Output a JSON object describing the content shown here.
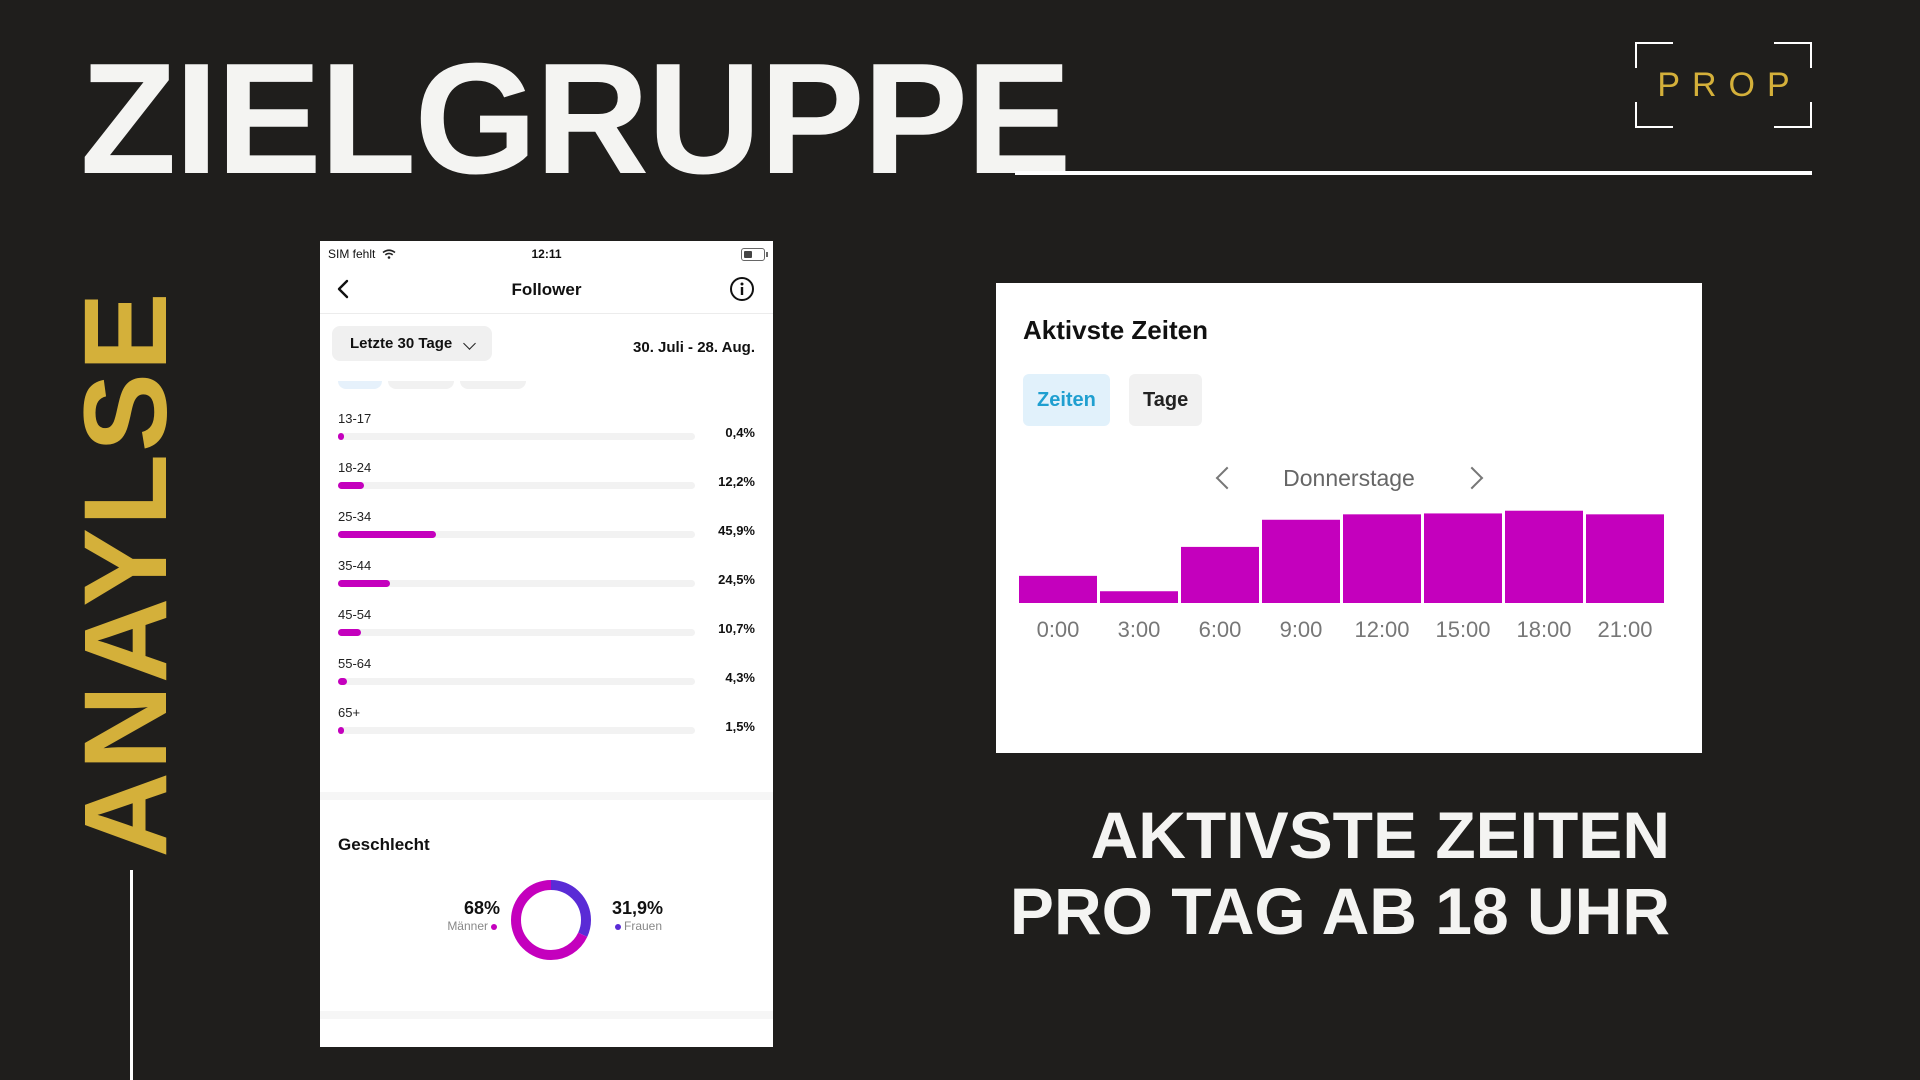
{
  "page": {
    "title": "ZIELGRUPPE",
    "side_word": "ANAYLSE",
    "logo_text": "PROP",
    "caption_line1": "AKTIVSTE ZEITEN",
    "caption_line2": "PRO TAG AB 18 UHR"
  },
  "colors": {
    "background": "#1f1e1c",
    "gold": "#d4b03a",
    "magenta": "#c400bd",
    "violet": "#5a2bd6",
    "accent_blue": "#1f9fd0"
  },
  "phone": {
    "status": {
      "carrier": "SIM fehlt",
      "time": "12:11"
    },
    "nav": {
      "title": "Follower",
      "back_icon": "chevron-left-icon",
      "info_icon": "info-icon"
    },
    "range": {
      "label": "Letzte 30 Tage",
      "dates": "30. Juli - 28. Aug."
    },
    "age_groups": [
      {
        "label": "13-17",
        "value": "0,4%",
        "fraction": 0.004
      },
      {
        "label": "18-24",
        "value": "12,2%",
        "fraction": 0.122
      },
      {
        "label": "25-34",
        "value": "45,9%",
        "fraction": 0.459
      },
      {
        "label": "35-44",
        "value": "24,5%",
        "fraction": 0.245
      },
      {
        "label": "45-54",
        "value": "10,7%",
        "fraction": 0.107
      },
      {
        "label": "55-64",
        "value": "4,3%",
        "fraction": 0.043
      },
      {
        "label": "65+",
        "value": "1,5%",
        "fraction": 0.015
      }
    ],
    "gender": {
      "title": "Geschlecht",
      "men": {
        "value": "68%",
        "label": "Männer",
        "fraction": 0.68
      },
      "women": {
        "value": "31,9%",
        "label": "Frauen",
        "fraction": 0.319
      }
    }
  },
  "active_times": {
    "title": "Aktivste Zeiten",
    "tabs": [
      "Zeiten",
      "Tage"
    ],
    "day": "Donnerstage"
  },
  "chart_data": {
    "type": "bar",
    "title": "Aktivste Zeiten",
    "categories": [
      "0:00",
      "3:00",
      "6:00",
      "9:00",
      "12:00",
      "15:00",
      "18:00",
      "21:00"
    ],
    "values": [
      30,
      13,
      62,
      92,
      98,
      99,
      102,
      98
    ],
    "ylim": [
      0,
      105
    ],
    "xlabel": "",
    "ylabel": "",
    "grid": false
  }
}
